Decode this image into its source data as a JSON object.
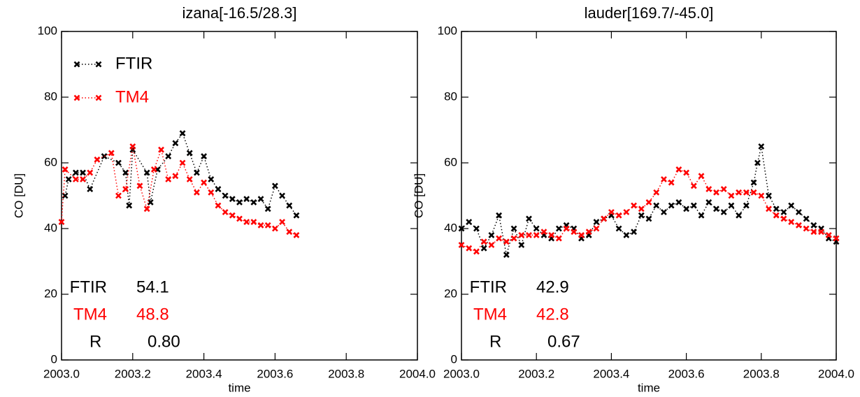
{
  "chart_data": [
    {
      "type": "line",
      "title": "izana[-16.5/28.3]",
      "xlabel": "time",
      "ylabel": "CO [DU]",
      "xlim": [
        2003,
        2004
      ],
      "ylim": [
        0,
        100
      ],
      "xticks": [
        {
          "value": 2003,
          "label": "2003.0"
        },
        2003.2,
        2003.4,
        2003.6,
        2003.8,
        {
          "value": 2004,
          "label": "2004.0"
        }
      ],
      "yticks": [
        0,
        20,
        40,
        60,
        80,
        100
      ],
      "marker": "x",
      "linestyle": "dotted",
      "legend": "upper left",
      "series": [
        {
          "name": "FTIR",
          "color": "#000000",
          "x": [
            2003.01,
            2003.02,
            2003.04,
            2003.06,
            2003.08,
            2003.12,
            2003.16,
            2003.18,
            2003.19,
            2003.2,
            2003.24,
            2003.25,
            2003.27,
            2003.3,
            2003.32,
            2003.34,
            2003.36,
            2003.38,
            2003.4,
            2003.42,
            2003.44,
            2003.46,
            2003.48,
            2003.5,
            2003.52,
            2003.54,
            2003.56,
            2003.58,
            2003.6,
            2003.62,
            2003.64,
            2003.66
          ],
          "values": [
            50,
            55,
            57,
            57,
            52,
            62,
            60,
            57,
            47,
            64,
            57,
            48,
            58,
            62,
            66,
            69,
            63,
            57,
            62,
            55,
            52,
            50,
            49,
            48,
            49,
            48,
            49,
            46,
            53,
            50,
            47,
            44
          ]
        },
        {
          "name": "TM4",
          "color": "#ff0000",
          "x": [
            2003.0,
            2003.01,
            2003.04,
            2003.06,
            2003.08,
            2003.1,
            2003.14,
            2003.16,
            2003.18,
            2003.2,
            2003.22,
            2003.24,
            2003.26,
            2003.28,
            2003.3,
            2003.32,
            2003.34,
            2003.36,
            2003.38,
            2003.4,
            2003.42,
            2003.44,
            2003.46,
            2003.48,
            2003.5,
            2003.52,
            2003.54,
            2003.56,
            2003.58,
            2003.6,
            2003.62,
            2003.64,
            2003.66
          ],
          "values": [
            42,
            58,
            55,
            55,
            57,
            61,
            63,
            50,
            52,
            65,
            53,
            46,
            58,
            64,
            55,
            56,
            60,
            55,
            51,
            54,
            51,
            47,
            45,
            44,
            43,
            42,
            42,
            41,
            41,
            40,
            42,
            39,
            38
          ]
        }
      ],
      "stats": [
        {
          "name": "FTIR",
          "color": "#000000",
          "value": 54.1
        },
        {
          "name": "TM4",
          "color": "#ff0000",
          "value": 48.8
        },
        {
          "name": "R",
          "color": "#000000",
          "value": 0.8,
          "value_label": "0.80"
        }
      ]
    },
    {
      "type": "line",
      "title": "lauder[169.7/-45.0]",
      "xlabel": "time",
      "ylabel": "CO [DU]",
      "xlim": [
        2003,
        2004
      ],
      "ylim": [
        0,
        100
      ],
      "xticks": [
        {
          "value": 2003,
          "label": "2003.0"
        },
        2003.2,
        2003.4,
        2003.6,
        2003.8,
        {
          "value": 2004,
          "label": "2004.0"
        }
      ],
      "yticks": [
        0,
        20,
        40,
        60,
        80,
        100
      ],
      "marker": "x",
      "linestyle": "dotted",
      "legend": false,
      "series": [
        {
          "name": "FTIR",
          "color": "#000000",
          "x": [
            2003.0,
            2003.02,
            2003.04,
            2003.06,
            2003.08,
            2003.1,
            2003.12,
            2003.14,
            2003.16,
            2003.18,
            2003.2,
            2003.22,
            2003.24,
            2003.26,
            2003.28,
            2003.3,
            2003.32,
            2003.34,
            2003.36,
            2003.38,
            2003.4,
            2003.42,
            2003.44,
            2003.46,
            2003.48,
            2003.5,
            2003.52,
            2003.54,
            2003.56,
            2003.58,
            2003.6,
            2003.62,
            2003.64,
            2003.66,
            2003.68,
            2003.7,
            2003.72,
            2003.74,
            2003.76,
            2003.78,
            2003.79,
            2003.8,
            2003.82,
            2003.84,
            2003.86,
            2003.88,
            2003.9,
            2003.92,
            2003.94,
            2003.96,
            2003.98,
            2004.0
          ],
          "values": [
            40,
            42,
            40,
            34,
            38,
            44,
            32,
            40,
            35,
            43,
            40,
            38,
            37,
            40,
            41,
            40,
            37,
            38,
            42,
            43,
            44,
            40,
            38,
            39,
            44,
            43,
            47,
            45,
            47,
            48,
            46,
            47,
            44,
            48,
            46,
            45,
            47,
            44,
            47,
            54,
            60,
            65,
            50,
            46,
            45,
            47,
            45,
            43,
            41,
            40,
            37,
            36
          ]
        },
        {
          "name": "TM4",
          "color": "#ff0000",
          "x": [
            2003.0,
            2003.02,
            2003.04,
            2003.06,
            2003.08,
            2003.1,
            2003.12,
            2003.14,
            2003.16,
            2003.18,
            2003.2,
            2003.22,
            2003.24,
            2003.26,
            2003.28,
            2003.3,
            2003.32,
            2003.34,
            2003.36,
            2003.38,
            2003.4,
            2003.42,
            2003.44,
            2003.46,
            2003.48,
            2003.5,
            2003.52,
            2003.54,
            2003.56,
            2003.58,
            2003.6,
            2003.62,
            2003.64,
            2003.66,
            2003.68,
            2003.7,
            2003.72,
            2003.74,
            2003.76,
            2003.78,
            2003.8,
            2003.82,
            2003.84,
            2003.86,
            2003.88,
            2003.9,
            2003.92,
            2003.94,
            2003.96,
            2003.98,
            2004.0
          ],
          "values": [
            35,
            34,
            33,
            36,
            35,
            37,
            36,
            37,
            38,
            38,
            38,
            39,
            38,
            37,
            40,
            39,
            38,
            39,
            40,
            43,
            45,
            44,
            45,
            47,
            46,
            48,
            51,
            55,
            54,
            58,
            57,
            53,
            56,
            52,
            51,
            52,
            50,
            51,
            51,
            51,
            50,
            46,
            44,
            43,
            42,
            41,
            40,
            39,
            39,
            38,
            37
          ]
        }
      ],
      "stats": [
        {
          "name": "FTIR",
          "color": "#000000",
          "value": 42.9
        },
        {
          "name": "TM4",
          "color": "#ff0000",
          "value": 42.8
        },
        {
          "name": "R",
          "color": "#000000",
          "value": 0.67
        }
      ]
    }
  ]
}
